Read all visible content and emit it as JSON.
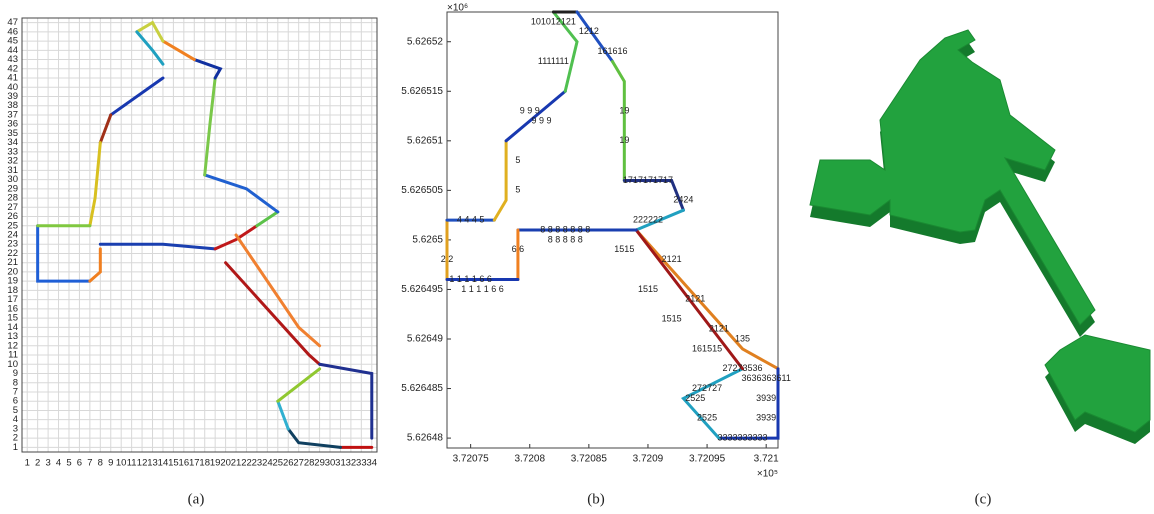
{
  "chart_data": [
    {
      "type": "line",
      "grid": true,
      "xlim": [
        0.5,
        34.5
      ],
      "ylim": [
        0.5,
        47.5
      ],
      "xticks": [
        1,
        2,
        3,
        4,
        5,
        6,
        7,
        8,
        9,
        10,
        11,
        12,
        13,
        14,
        15,
        16,
        17,
        18,
        19,
        20,
        21,
        22,
        23,
        24,
        25,
        26,
        27,
        28,
        29,
        30,
        31,
        32,
        33,
        34
      ],
      "yticks": [
        1,
        2,
        3,
        4,
        5,
        6,
        7,
        8,
        9,
        10,
        11,
        12,
        13,
        14,
        15,
        16,
        17,
        18,
        19,
        20,
        21,
        22,
        23,
        24,
        25,
        26,
        27,
        28,
        29,
        30,
        31,
        32,
        33,
        34,
        35,
        36,
        37,
        38,
        39,
        40,
        41,
        42,
        43,
        44,
        45,
        46,
        47
      ],
      "series": [
        {
          "color": "#1f5fd6",
          "x": [
            2,
            2,
            7
          ],
          "values": [
            25,
            19,
            19
          ]
        },
        {
          "color": "#f07f20",
          "x": [
            7,
            8,
            8
          ],
          "values": [
            19,
            20,
            22.5
          ]
        },
        {
          "color": "#1a3fb0",
          "x": [
            8,
            14,
            19
          ],
          "values": [
            23,
            23,
            22.5
          ]
        },
        {
          "color": "#c0181a",
          "x": [
            19,
            21,
            23
          ],
          "values": [
            22.5,
            23.5,
            25
          ]
        },
        {
          "color": "#5cc24a",
          "x": [
            23,
            25
          ],
          "values": [
            25,
            26.5
          ]
        },
        {
          "color": "#2060d0",
          "x": [
            25,
            22,
            18
          ],
          "values": [
            26.5,
            29,
            30.5
          ]
        },
        {
          "color": "#7ac84a",
          "x": [
            18,
            18.5,
            19
          ],
          "values": [
            30.5,
            36,
            41
          ]
        },
        {
          "color": "#1030a0",
          "x": [
            19,
            19.5,
            17
          ],
          "values": [
            41,
            42,
            43
          ]
        },
        {
          "color": "#f08020",
          "x": [
            17,
            14
          ],
          "values": [
            43,
            45
          ]
        },
        {
          "color": "#c8d040",
          "x": [
            14,
            13,
            11.5
          ],
          "values": [
            45,
            47,
            46
          ]
        },
        {
          "color": "#20a0c0",
          "x": [
            11.5,
            13,
            14
          ],
          "values": [
            46,
            44,
            42.5
          ]
        },
        {
          "color": "#1838b0",
          "x": [
            14,
            9
          ],
          "values": [
            41,
            37
          ]
        },
        {
          "color": "#a03018",
          "x": [
            9,
            8
          ],
          "values": [
            37,
            34
          ]
        },
        {
          "color": "#d8c020",
          "x": [
            8,
            7.5,
            7
          ],
          "values": [
            34,
            28,
            25
          ]
        },
        {
          "color": "#80c840",
          "x": [
            7,
            2
          ],
          "values": [
            25,
            25
          ]
        },
        {
          "color": "#b01818",
          "x": [
            20,
            28,
            29
          ],
          "values": [
            21,
            11,
            10
          ]
        },
        {
          "color": "#f08030",
          "x": [
            21,
            27,
            29
          ],
          "values": [
            24,
            14,
            12
          ]
        },
        {
          "color": "#203090",
          "x": [
            29,
            34,
            34
          ],
          "values": [
            10,
            9,
            2
          ]
        },
        {
          "color": "#c01010",
          "x": [
            34,
            31
          ],
          "values": [
            1,
            1
          ]
        },
        {
          "color": "#104060",
          "x": [
            31,
            27,
            26
          ],
          "values": [
            1,
            1.5,
            3
          ]
        },
        {
          "color": "#30b0d0",
          "x": [
            26,
            25
          ],
          "values": [
            3,
            6
          ]
        },
        {
          "color": "#90c830",
          "x": [
            25,
            29
          ],
          "values": [
            6,
            9.5
          ]
        }
      ]
    },
    {
      "type": "line",
      "grid": false,
      "xlim": [
        3.72073,
        3.72101
      ],
      "ylim": [
        5.626479,
        5.626523
      ],
      "xticks": [
        3.72075,
        3.7208,
        3.72085,
        3.7209,
        3.72095,
        3.721
      ],
      "yticks": [
        5.62648,
        5.626485,
        5.62649,
        5.626495,
        5.6265,
        5.626505,
        5.62651,
        5.626515,
        5.62652
      ],
      "x_multiplier": "×10⁵",
      "y_multiplier": "×10⁶",
      "series": [
        {
          "color": "#e0a020",
          "x": [
            3.72073,
            3.72073
          ],
          "values": [
            5.626496,
            5.626502
          ]
        },
        {
          "color": "#2050c0",
          "x": [
            3.72073,
            3.72077
          ],
          "values": [
            5.626502,
            5.626502
          ]
        },
        {
          "color": "#e0b020",
          "x": [
            3.72077,
            3.72078,
            3.72078
          ],
          "values": [
            5.626502,
            5.626504,
            5.62651
          ]
        },
        {
          "color": "#1838b0",
          "x": [
            3.72078,
            3.72083
          ],
          "values": [
            5.62651,
            5.626515
          ]
        },
        {
          "color": "#50c050",
          "x": [
            3.72083,
            3.72084,
            3.72082
          ],
          "values": [
            5.626515,
            5.62652,
            5.626523
          ]
        },
        {
          "color": "#202020",
          "x": [
            3.72082,
            3.72084
          ],
          "values": [
            5.626523,
            5.626523
          ]
        },
        {
          "color": "#2050c0",
          "x": [
            3.72084,
            3.72087
          ],
          "values": [
            5.626523,
            5.626518
          ]
        },
        {
          "color": "#60c040",
          "x": [
            3.72087,
            3.72088,
            3.72088
          ],
          "values": [
            5.626518,
            5.626516,
            5.626506
          ]
        },
        {
          "color": "#203080",
          "x": [
            3.72088,
            3.72092,
            3.72093
          ],
          "values": [
            5.626506,
            5.626506,
            5.626503
          ]
        },
        {
          "color": "#20a0c0",
          "x": [
            3.72093,
            3.72089
          ],
          "values": [
            5.626503,
            5.626501
          ]
        },
        {
          "color": "#e08020",
          "x": [
            3.72089,
            3.72098,
            3.72101
          ],
          "values": [
            5.626501,
            5.626489,
            5.626487
          ]
        },
        {
          "color": "#1838b0",
          "x": [
            3.72101,
            3.72101,
            3.72096
          ],
          "values": [
            5.626487,
            5.62648,
            5.62648
          ]
        },
        {
          "color": "#20a0c0",
          "x": [
            3.72096,
            3.72093,
            3.72098
          ],
          "values": [
            5.62648,
            5.626484,
            5.626487
          ]
        },
        {
          "color": "#a01818",
          "x": [
            3.72098,
            3.72089
          ],
          "values": [
            5.626487,
            5.626501
          ]
        },
        {
          "color": "#1a3fb0",
          "x": [
            3.72089,
            3.72079
          ],
          "values": [
            5.626501,
            5.626501
          ]
        },
        {
          "color": "#f08020",
          "x": [
            3.72079,
            3.72079
          ],
          "values": [
            5.626501,
            5.626496
          ]
        },
        {
          "color": "#1838b0",
          "x": [
            3.72079,
            3.72073
          ],
          "values": [
            5.626496,
            5.626496
          ]
        }
      ],
      "annotations": [
        {
          "text": "1 1 1 1 6 6",
          "x": 3.72075,
          "y": 5.626496
        },
        {
          "text": "1 1 1 1 6 6",
          "x": 3.72076,
          "y": 5.626495
        },
        {
          "text": "2 2",
          "x": 3.72073,
          "y": 5.626498
        },
        {
          "text": "4 4 4 5",
          "x": 3.72075,
          "y": 5.626502
        },
        {
          "text": "5",
          "x": 3.72079,
          "y": 5.626505
        },
        {
          "text": "5",
          "x": 3.72079,
          "y": 5.626508
        },
        {
          "text": "9 9 9",
          "x": 3.7208,
          "y": 5.626513
        },
        {
          "text": "9 9 9",
          "x": 3.72081,
          "y": 5.626512
        },
        {
          "text": "1111111",
          "x": 3.72082,
          "y": 5.626518
        },
        {
          "text": "101012121",
          "x": 3.72082,
          "y": 5.626522
        },
        {
          "text": "1212",
          "x": 3.72085,
          "y": 5.626521
        },
        {
          "text": "161616",
          "x": 3.72087,
          "y": 5.626519
        },
        {
          "text": "19",
          "x": 3.72088,
          "y": 5.626513
        },
        {
          "text": "19",
          "x": 3.72088,
          "y": 5.62651
        },
        {
          "text": "1717171717",
          "x": 3.7209,
          "y": 5.626506
        },
        {
          "text": "2424",
          "x": 3.72093,
          "y": 5.626504
        },
        {
          "text": "222222",
          "x": 3.7209,
          "y": 5.626502
        },
        {
          "text": "8 8 8 8 8 8 8",
          "x": 3.72083,
          "y": 5.626501
        },
        {
          "text": "8 8 8 8 8",
          "x": 3.72083,
          "y": 5.6265
        },
        {
          "text": "6 6",
          "x": 3.72079,
          "y": 5.626499
        },
        {
          "text": "1515",
          "x": 3.72088,
          "y": 5.626499
        },
        {
          "text": "2121",
          "x": 3.72092,
          "y": 5.626498
        },
        {
          "text": "1515",
          "x": 3.7209,
          "y": 5.626495
        },
        {
          "text": "2121",
          "x": 3.72094,
          "y": 5.626494
        },
        {
          "text": "1515",
          "x": 3.72092,
          "y": 5.626492
        },
        {
          "text": "2121",
          "x": 3.72096,
          "y": 5.626491
        },
        {
          "text": "161515",
          "x": 3.72095,
          "y": 5.626489
        },
        {
          "text": "135",
          "x": 3.72098,
          "y": 5.62649
        },
        {
          "text": "27273536",
          "x": 3.72098,
          "y": 5.626487
        },
        {
          "text": "3636363611",
          "x": 3.721,
          "y": 5.626486
        },
        {
          "text": "272727",
          "x": 3.72095,
          "y": 5.626485
        },
        {
          "text": "2525",
          "x": 3.72094,
          "y": 5.626484
        },
        {
          "text": "3939",
          "x": 3.721,
          "y": 5.626484
        },
        {
          "text": "3939",
          "x": 3.721,
          "y": 5.626482
        },
        {
          "text": "2525",
          "x": 3.72095,
          "y": 5.626482
        },
        {
          "text": "3333333333",
          "x": 3.72098,
          "y": 5.62648
        }
      ]
    }
  ],
  "captions": [
    "(a)",
    "(b)",
    "(c)"
  ]
}
